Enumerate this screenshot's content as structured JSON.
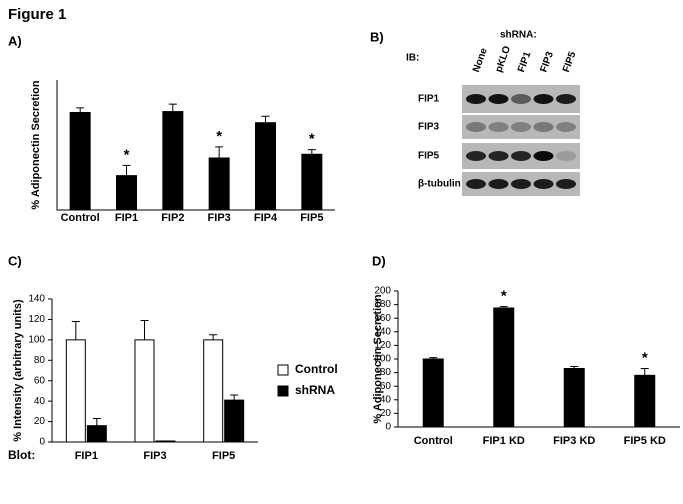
{
  "figure_title": "Figure 1",
  "panel_b": {
    "label": "B)",
    "header": "shRNA:",
    "ib_label": "IB:",
    "lanes": [
      "None",
      "pKLO",
      "FIP1",
      "FIP3",
      "FIP5"
    ],
    "rows": [
      "FIP1",
      "FIP3",
      "FIP5",
      "β-tubulin"
    ]
  },
  "chart_data": [
    {
      "type": "bar",
      "label": "A)",
      "ylabel": "% Adiponectin Secretion",
      "categories": [
        "Control",
        "FIP1",
        "FIP2",
        "FIP3",
        "FIP4",
        "FIP5"
      ],
      "values": [
        105,
        37,
        106,
        56,
        94,
        60
      ],
      "errors": [
        5,
        11,
        8,
        12,
        7,
        5
      ],
      "significance": [
        null,
        "*",
        null,
        "*",
        null,
        "*"
      ],
      "color": "#000000",
      "ylim": [
        0,
        140
      ]
    },
    {
      "type": "grouped_bar",
      "label": "C)",
      "ylabel": "% Intensity (arbitrary units)",
      "xlabel": "Blot:",
      "categories": [
        "FIP1",
        "FIP3",
        "FIP5"
      ],
      "series": [
        {
          "name": "Control",
          "color": "#ffffff",
          "values": [
            100,
            100,
            100
          ],
          "errors": [
            18,
            19,
            5
          ]
        },
        {
          "name": "shRNA",
          "color": "#000000",
          "values": [
            16,
            1,
            41
          ],
          "errors": [
            7,
            0,
            5
          ]
        }
      ],
      "ylim": [
        0,
        140
      ],
      "yticks": [
        0,
        20,
        40,
        60,
        80,
        100,
        120,
        140
      ],
      "legend": "right"
    },
    {
      "type": "bar",
      "label": "D)",
      "ylabel": "% Adiponectin Secretion",
      "categories": [
        "Control",
        "FIP1 KD",
        "FIP3 KD",
        "FIP5 KD"
      ],
      "values": [
        100,
        175,
        86,
        76
      ],
      "errors": [
        2,
        2,
        3,
        10
      ],
      "significance": [
        null,
        "*",
        null,
        "*"
      ],
      "color": "#000000",
      "ylim": [
        0,
        200
      ],
      "yticks": [
        0,
        20,
        40,
        60,
        80,
        100,
        120,
        140,
        160,
        180,
        200
      ]
    }
  ]
}
